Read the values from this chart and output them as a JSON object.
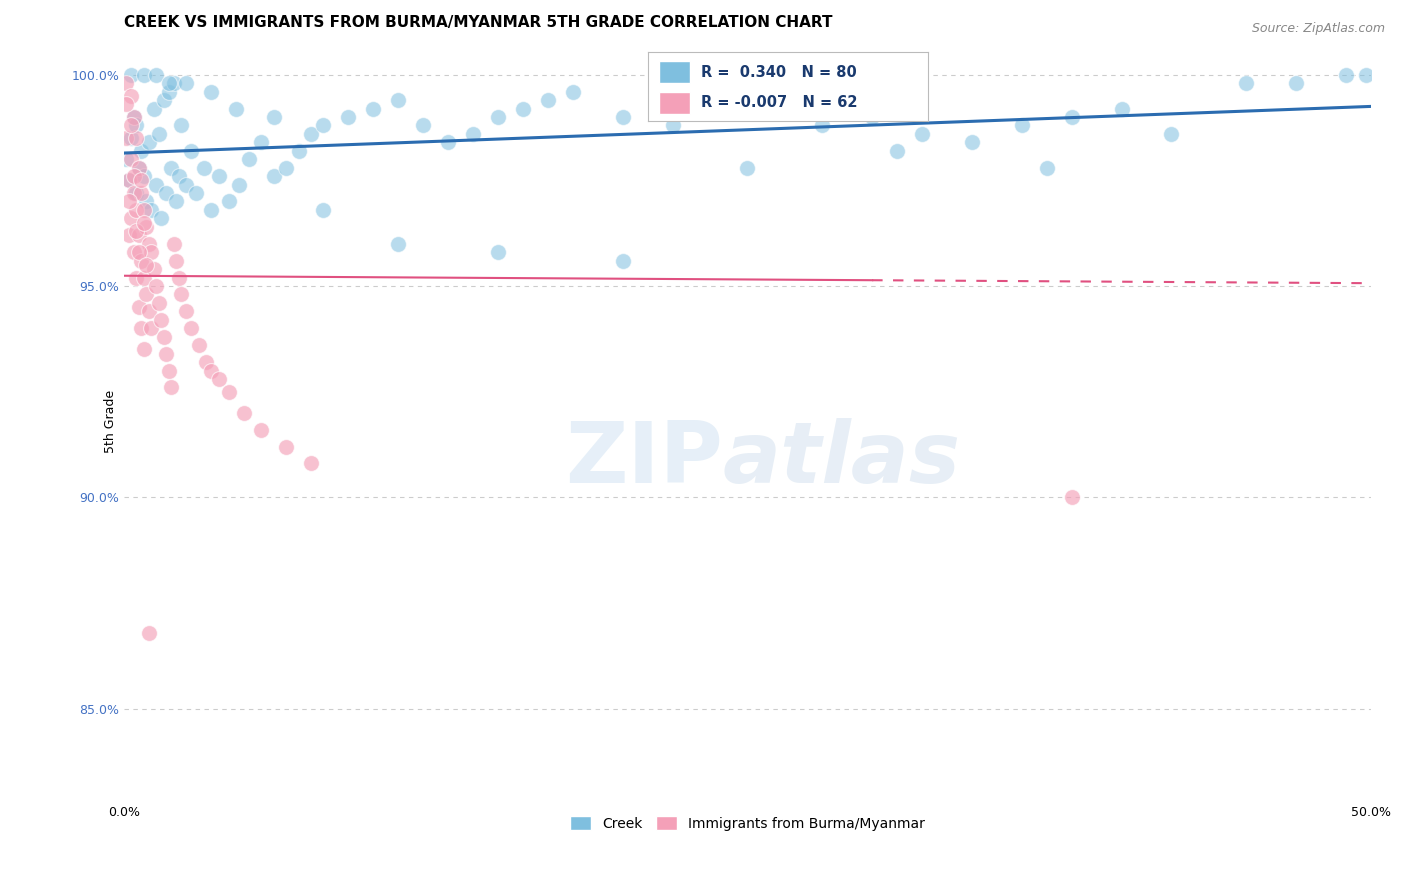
{
  "title": "CREEK VS IMMIGRANTS FROM BURMA/MYANMAR 5TH GRADE CORRELATION CHART",
  "source": "Source: ZipAtlas.com",
  "ylabel": "5th Grade",
  "xlim": [
    0.0,
    0.5
  ],
  "ylim": [
    0.828,
    1.008
  ],
  "xticks": [
    0.0,
    0.1,
    0.2,
    0.3,
    0.4,
    0.5
  ],
  "xticklabels": [
    "0.0%",
    "",
    "",
    "",
    "",
    "50.0%"
  ],
  "yticks": [
    0.85,
    0.9,
    0.95,
    1.0
  ],
  "yticklabels": [
    "85.0%",
    "90.0%",
    "95.0%",
    "100.0%"
  ],
  "creek_color": "#7fbfdf",
  "immigrant_color": "#f4a0b8",
  "creek_line_color": "#2b6cb0",
  "immigrant_line_color": "#e05080",
  "legend_R_creek": "0.340",
  "legend_N_creek": "80",
  "legend_R_immigrant": "-0.007",
  "legend_N_immigrant": "62",
  "background_color": "#ffffff",
  "title_fontsize": 11,
  "axis_label_fontsize": 9,
  "tick_fontsize": 9,
  "source_fontsize": 9,
  "creek_scatter_x": [
    0.001,
    0.002,
    0.003,
    0.004,
    0.005,
    0.005,
    0.006,
    0.007,
    0.008,
    0.009,
    0.01,
    0.011,
    0.012,
    0.013,
    0.014,
    0.015,
    0.016,
    0.017,
    0.018,
    0.019,
    0.02,
    0.021,
    0.022,
    0.023,
    0.025,
    0.027,
    0.029,
    0.032,
    0.035,
    0.038,
    0.042,
    0.046,
    0.05,
    0.055,
    0.06,
    0.065,
    0.07,
    0.075,
    0.08,
    0.09,
    0.1,
    0.11,
    0.12,
    0.13,
    0.14,
    0.15,
    0.16,
    0.17,
    0.18,
    0.2,
    0.22,
    0.24,
    0.26,
    0.28,
    0.3,
    0.32,
    0.34,
    0.36,
    0.38,
    0.4,
    0.003,
    0.008,
    0.013,
    0.018,
    0.025,
    0.035,
    0.045,
    0.06,
    0.08,
    0.11,
    0.15,
    0.2,
    0.25,
    0.31,
    0.37,
    0.42,
    0.45,
    0.47,
    0.49,
    0.498
  ],
  "creek_scatter_y": [
    0.98,
    0.975,
    0.985,
    0.99,
    0.972,
    0.988,
    0.978,
    0.982,
    0.976,
    0.97,
    0.984,
    0.968,
    0.992,
    0.974,
    0.986,
    0.966,
    0.994,
    0.972,
    0.996,
    0.978,
    0.998,
    0.97,
    0.976,
    0.988,
    0.974,
    0.982,
    0.972,
    0.978,
    0.968,
    0.976,
    0.97,
    0.974,
    0.98,
    0.984,
    0.976,
    0.978,
    0.982,
    0.986,
    0.988,
    0.99,
    0.992,
    0.994,
    0.988,
    0.984,
    0.986,
    0.99,
    0.992,
    0.994,
    0.996,
    0.99,
    0.988,
    0.992,
    0.994,
    0.988,
    0.99,
    0.986,
    0.984,
    0.988,
    0.99,
    0.992,
    1.0,
    1.0,
    1.0,
    0.998,
    0.998,
    0.996,
    0.992,
    0.99,
    0.968,
    0.96,
    0.958,
    0.956,
    0.978,
    0.982,
    0.978,
    0.986,
    0.998,
    0.998,
    1.0,
    1.0
  ],
  "immigrant_scatter_x": [
    0.001,
    0.001,
    0.002,
    0.002,
    0.003,
    0.003,
    0.003,
    0.004,
    0.004,
    0.004,
    0.005,
    0.005,
    0.005,
    0.006,
    0.006,
    0.006,
    0.007,
    0.007,
    0.007,
    0.008,
    0.008,
    0.008,
    0.009,
    0.009,
    0.01,
    0.01,
    0.011,
    0.011,
    0.012,
    0.013,
    0.014,
    0.015,
    0.016,
    0.017,
    0.018,
    0.019,
    0.02,
    0.021,
    0.022,
    0.023,
    0.025,
    0.027,
    0.03,
    0.033,
    0.035,
    0.038,
    0.042,
    0.048,
    0.055,
    0.065,
    0.075,
    0.001,
    0.002,
    0.003,
    0.004,
    0.005,
    0.006,
    0.007,
    0.008,
    0.009,
    0.01,
    0.38
  ],
  "immigrant_scatter_y": [
    0.998,
    0.985,
    0.975,
    0.962,
    0.995,
    0.98,
    0.966,
    0.99,
    0.972,
    0.958,
    0.985,
    0.968,
    0.952,
    0.978,
    0.962,
    0.945,
    0.972,
    0.956,
    0.94,
    0.968,
    0.952,
    0.935,
    0.964,
    0.948,
    0.96,
    0.944,
    0.958,
    0.94,
    0.954,
    0.95,
    0.946,
    0.942,
    0.938,
    0.934,
    0.93,
    0.926,
    0.96,
    0.956,
    0.952,
    0.948,
    0.944,
    0.94,
    0.936,
    0.932,
    0.93,
    0.928,
    0.925,
    0.92,
    0.916,
    0.912,
    0.908,
    0.993,
    0.97,
    0.988,
    0.976,
    0.963,
    0.958,
    0.975,
    0.965,
    0.955,
    0.868,
    0.9
  ],
  "creek_line_y0": 0.975,
  "creek_line_y1": 0.998,
  "immigrant_line_y0": 0.952,
  "immigrant_line_y1": 0.95
}
